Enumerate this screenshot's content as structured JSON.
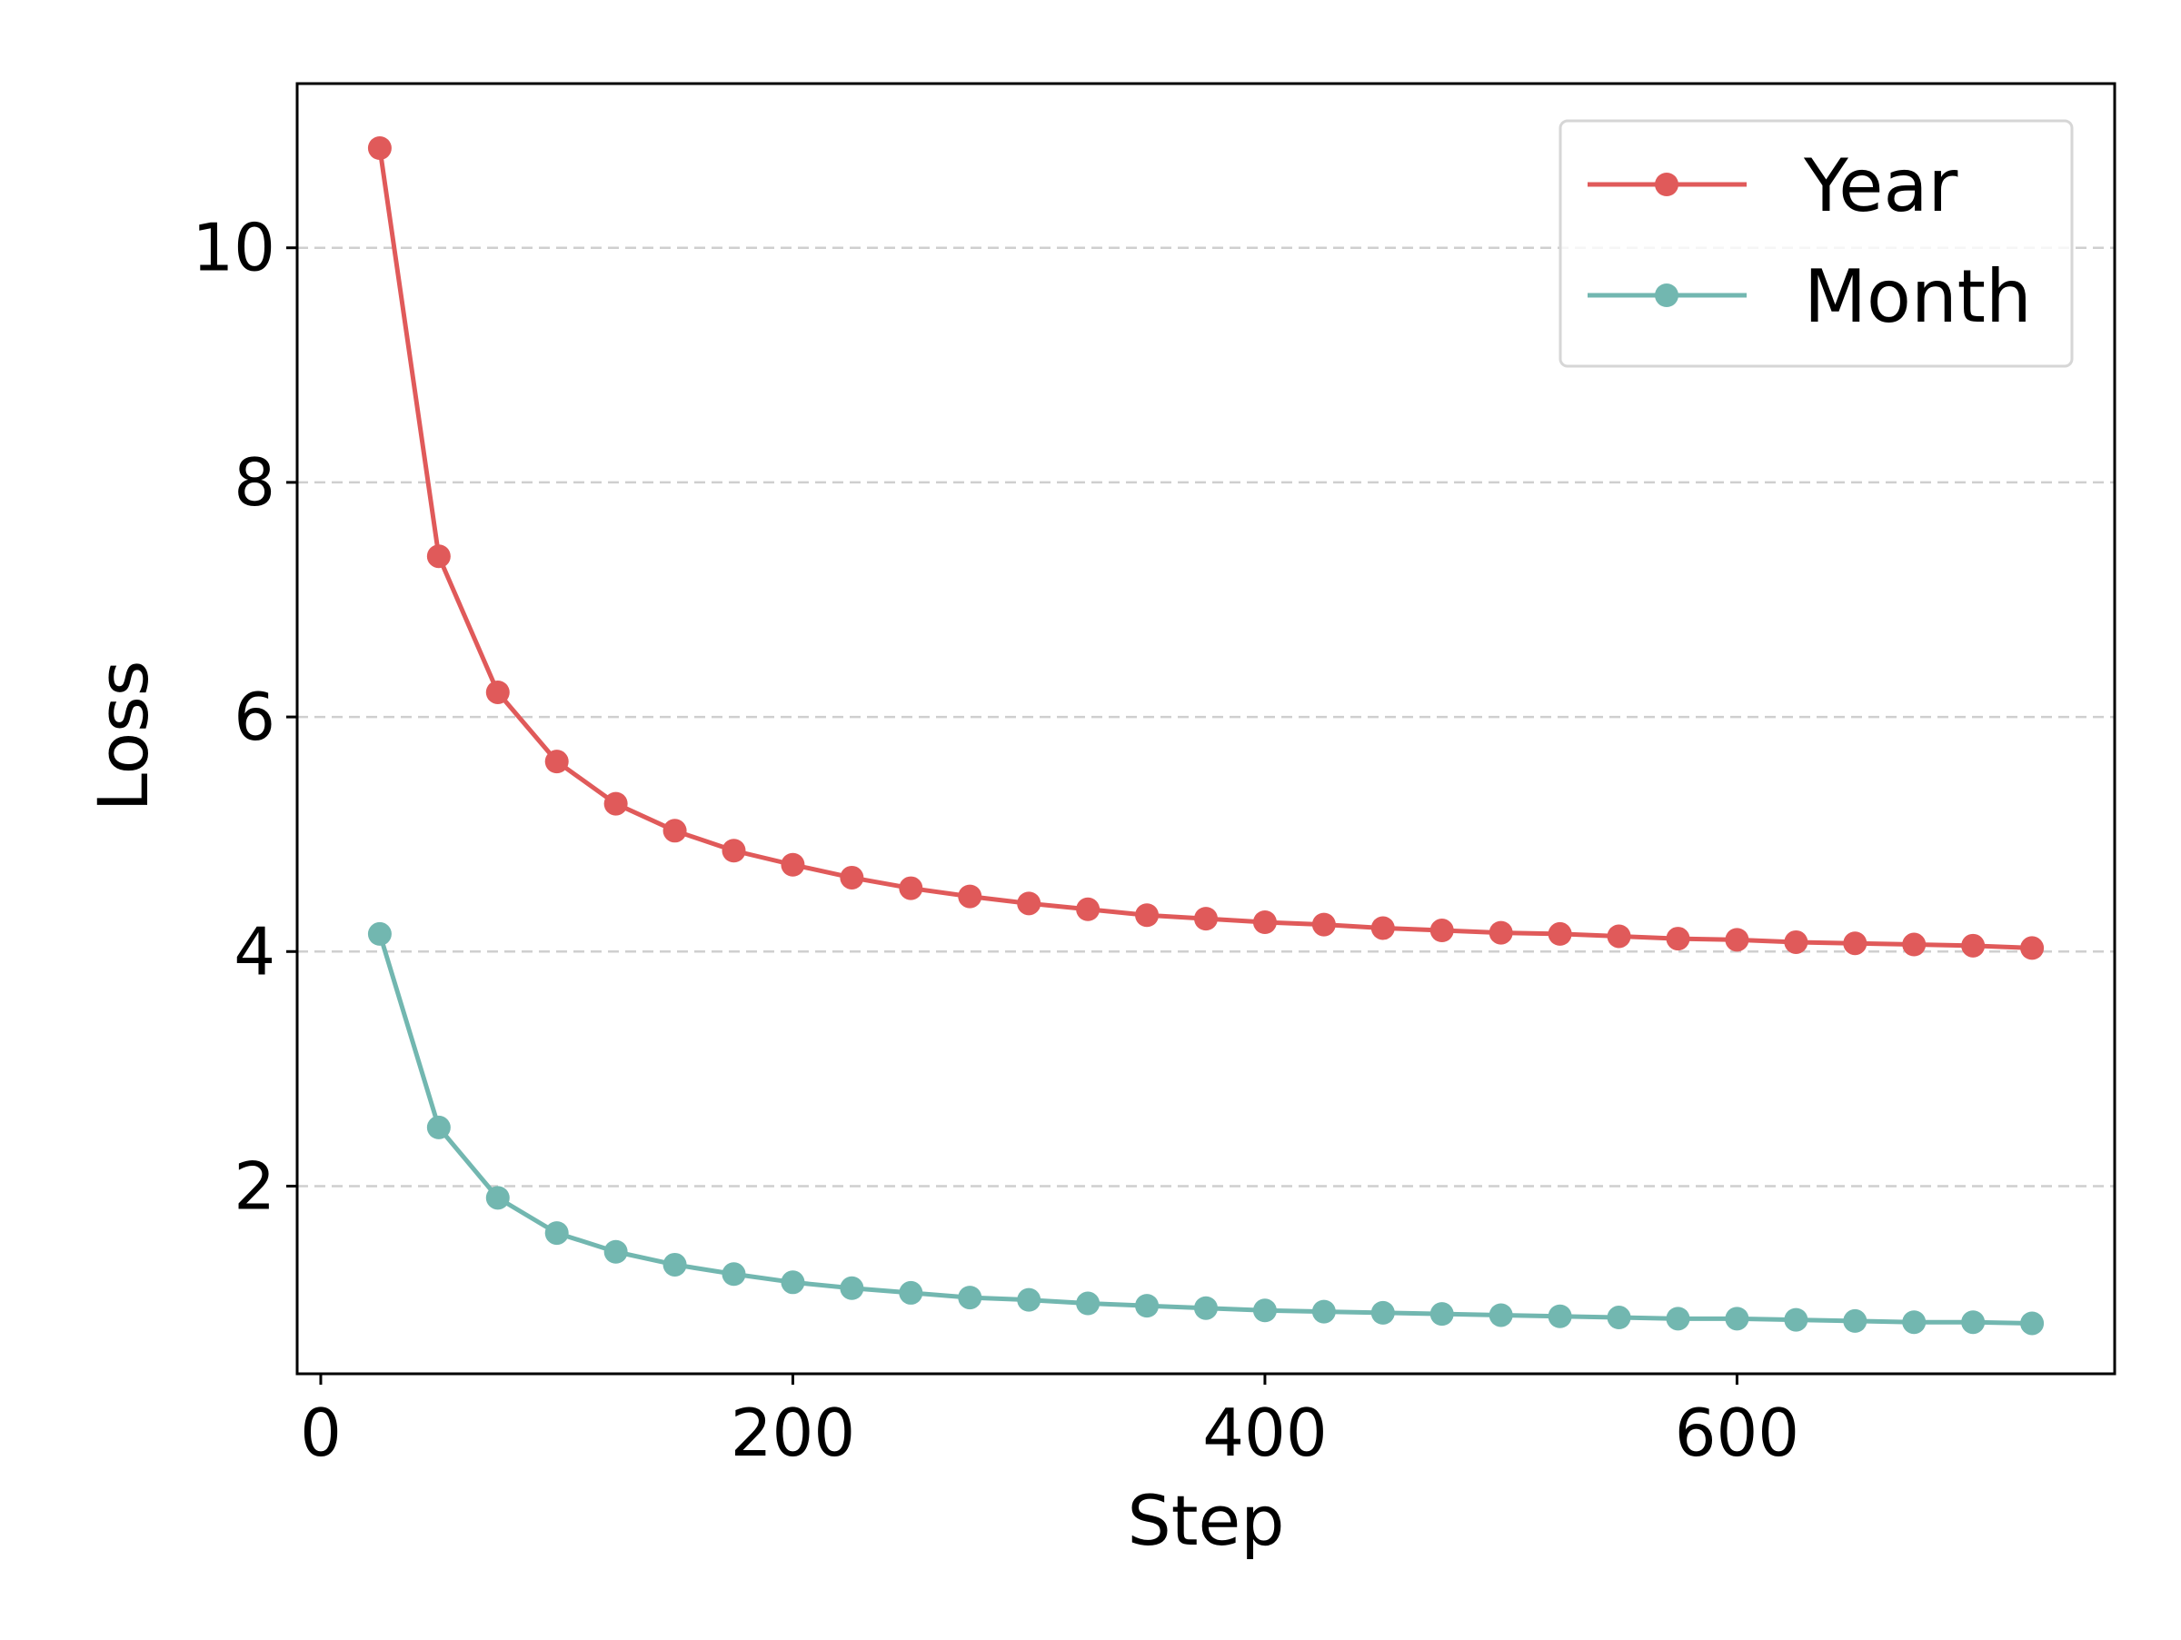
{
  "chart_data": {
    "type": "line",
    "title": "",
    "xlabel": "Step",
    "ylabel": "Loss",
    "xlim": [
      -10,
      760
    ],
    "ylim": [
      0.4,
      11.4
    ],
    "x_ticks": [
      0,
      200,
      400,
      600
    ],
    "y_ticks": [
      2,
      4,
      6,
      8,
      10
    ],
    "grid": "horizontal-dashed",
    "legend_position": "top-right",
    "x": [
      25,
      50,
      75,
      100,
      125,
      150,
      175,
      200,
      225,
      250,
      275,
      300,
      325,
      350,
      375,
      400,
      425,
      450,
      475,
      500,
      525,
      550,
      575,
      600,
      625,
      650,
      675,
      700,
      725
    ],
    "series": [
      {
        "name": "Year",
        "color": "#e05a5a",
        "values": [
          10.85,
          7.37,
          6.21,
          5.62,
          5.26,
          5.03,
          4.86,
          4.74,
          4.63,
          4.54,
          4.47,
          4.41,
          4.36,
          4.31,
          4.28,
          4.25,
          4.23,
          4.2,
          4.18,
          4.16,
          4.15,
          4.13,
          4.11,
          4.1,
          4.08,
          4.07,
          4.06,
          4.05,
          4.03
        ]
      },
      {
        "name": "Month",
        "color": "#72b7b0",
        "values": [
          4.15,
          2.5,
          1.9,
          1.6,
          1.44,
          1.33,
          1.25,
          1.18,
          1.13,
          1.09,
          1.05,
          1.03,
          1.0,
          0.98,
          0.96,
          0.94,
          0.93,
          0.92,
          0.91,
          0.9,
          0.89,
          0.88,
          0.87,
          0.87,
          0.86,
          0.85,
          0.84,
          0.84,
          0.83
        ]
      }
    ]
  }
}
